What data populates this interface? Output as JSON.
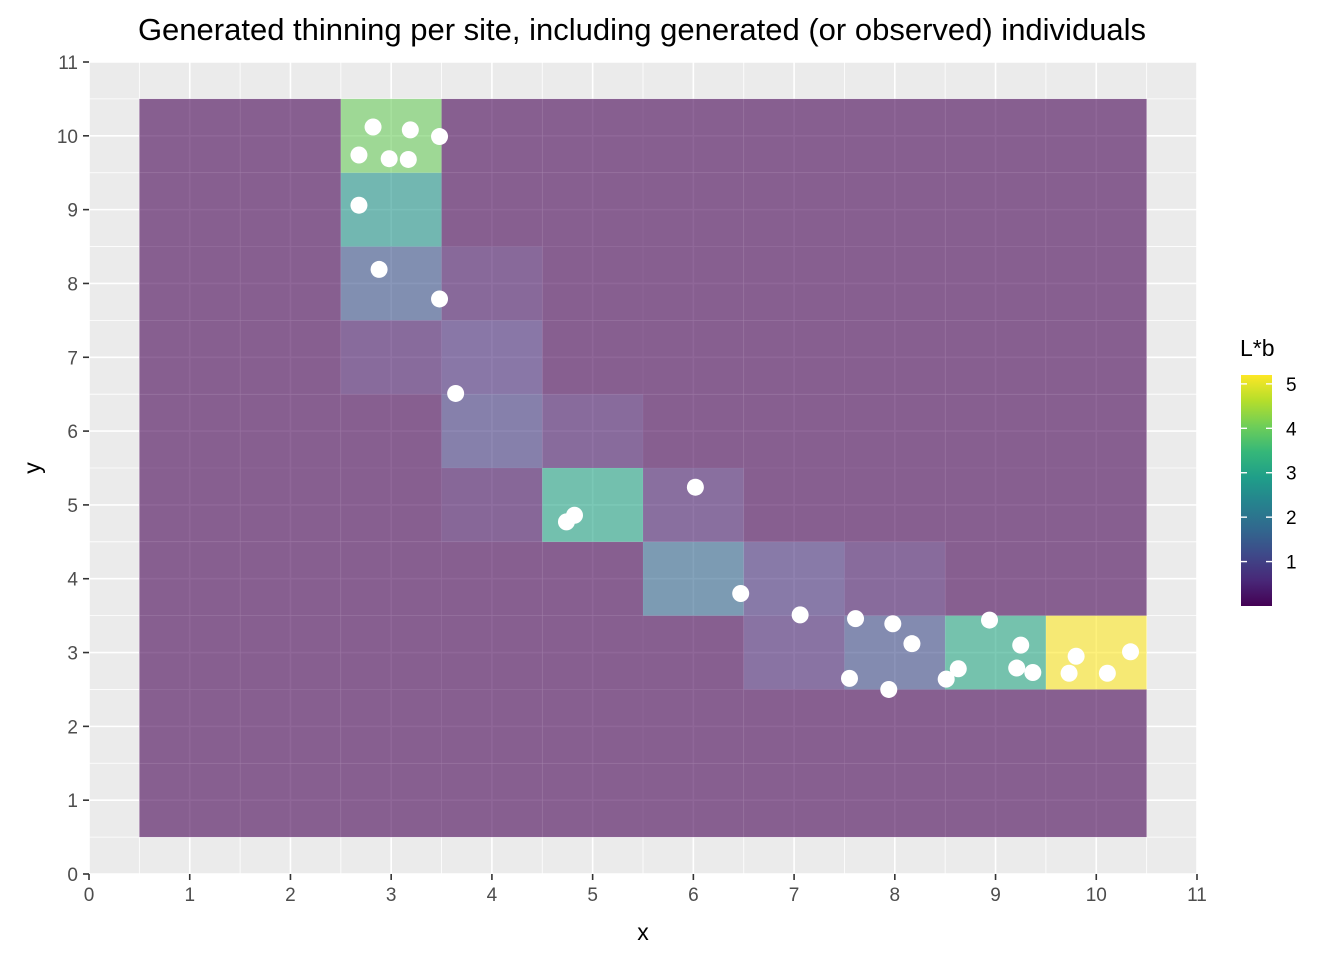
{
  "chart_data": {
    "type": "heatmap",
    "title": "Generated thinning per site, including generated (or observed) individuals",
    "xlabel": "x",
    "ylabel": "y",
    "xlim": [
      0,
      11
    ],
    "ylim": [
      0,
      11
    ],
    "x_ticks": [
      "0",
      "1",
      "2",
      "3",
      "4",
      "5",
      "6",
      "7",
      "8",
      "9",
      "10",
      "11"
    ],
    "y_ticks": [
      "0",
      "1",
      "2",
      "3",
      "4",
      "5",
      "6",
      "7",
      "8",
      "9",
      "10",
      "11"
    ],
    "grid": true,
    "background_color": "#ebebeb",
    "tile_opacity": 0.6,
    "legend": {
      "title": "L*b",
      "position": "right",
      "min": 0,
      "max": 5.2,
      "breaks": [
        1,
        2,
        3,
        4,
        5
      ],
      "break_labels": [
        "1",
        "2",
        "3",
        "4",
        "5"
      ],
      "palette": [
        "#440154",
        "#482878",
        "#3e4989",
        "#31688e",
        "#26828e",
        "#1f9e89",
        "#35b779",
        "#6ece58",
        "#b5de2b",
        "#fde725"
      ]
    },
    "grid_extent": {
      "x": [
        1,
        10
      ],
      "y": [
        1,
        10
      ],
      "default_value": 0
    },
    "tiles": [
      {
        "x": 3,
        "y": 10,
        "value": 4.0
      },
      {
        "x": 3,
        "y": 9,
        "value": 2.7
      },
      {
        "x": 3,
        "y": 8,
        "value": 1.3
      },
      {
        "x": 3,
        "y": 7,
        "value": 0.3
      },
      {
        "x": 4,
        "y": 8,
        "value": 0.25
      },
      {
        "x": 4,
        "y": 7,
        "value": 0.6
      },
      {
        "x": 4,
        "y": 6,
        "value": 0.85
      },
      {
        "x": 5,
        "y": 6,
        "value": 0.3
      },
      {
        "x": 4,
        "y": 5,
        "value": 0.2
      },
      {
        "x": 5,
        "y": 5,
        "value": 3.0
      },
      {
        "x": 6,
        "y": 5,
        "value": 0.4
      },
      {
        "x": 6,
        "y": 4,
        "value": 1.7
      },
      {
        "x": 7,
        "y": 4,
        "value": 0.7
      },
      {
        "x": 8,
        "y": 4,
        "value": 0.3
      },
      {
        "x": 7,
        "y": 3,
        "value": 0.5
      },
      {
        "x": 8,
        "y": 3,
        "value": 1.2
      },
      {
        "x": 9,
        "y": 3,
        "value": 3.1
      },
      {
        "x": 10,
        "y": 3,
        "value": 5.2
      }
    ],
    "points": [
      {
        "x": 2.82,
        "y": 10.12
      },
      {
        "x": 3.19,
        "y": 10.08
      },
      {
        "x": 3.48,
        "y": 9.99
      },
      {
        "x": 2.68,
        "y": 9.74
      },
      {
        "x": 2.98,
        "y": 9.69
      },
      {
        "x": 3.17,
        "y": 9.68
      },
      {
        "x": 2.68,
        "y": 9.06
      },
      {
        "x": 2.88,
        "y": 8.19
      },
      {
        "x": 3.48,
        "y": 7.79
      },
      {
        "x": 3.64,
        "y": 6.51
      },
      {
        "x": 6.02,
        "y": 5.24
      },
      {
        "x": 4.82,
        "y": 4.86
      },
      {
        "x": 4.74,
        "y": 4.77
      },
      {
        "x": 6.47,
        "y": 3.8
      },
      {
        "x": 7.06,
        "y": 3.51
      },
      {
        "x": 7.61,
        "y": 3.46
      },
      {
        "x": 7.98,
        "y": 3.39
      },
      {
        "x": 8.17,
        "y": 3.12
      },
      {
        "x": 7.55,
        "y": 2.65
      },
      {
        "x": 7.94,
        "y": 2.5
      },
      {
        "x": 8.51,
        "y": 2.64
      },
      {
        "x": 8.63,
        "y": 2.78
      },
      {
        "x": 8.94,
        "y": 3.44
      },
      {
        "x": 9.25,
        "y": 3.1
      },
      {
        "x": 9.21,
        "y": 2.79
      },
      {
        "x": 9.37,
        "y": 2.73
      },
      {
        "x": 9.8,
        "y": 2.95
      },
      {
        "x": 9.73,
        "y": 2.72
      },
      {
        "x": 10.11,
        "y": 2.72
      },
      {
        "x": 10.34,
        "y": 3.01
      }
    ],
    "point_color": "#ffffff"
  }
}
